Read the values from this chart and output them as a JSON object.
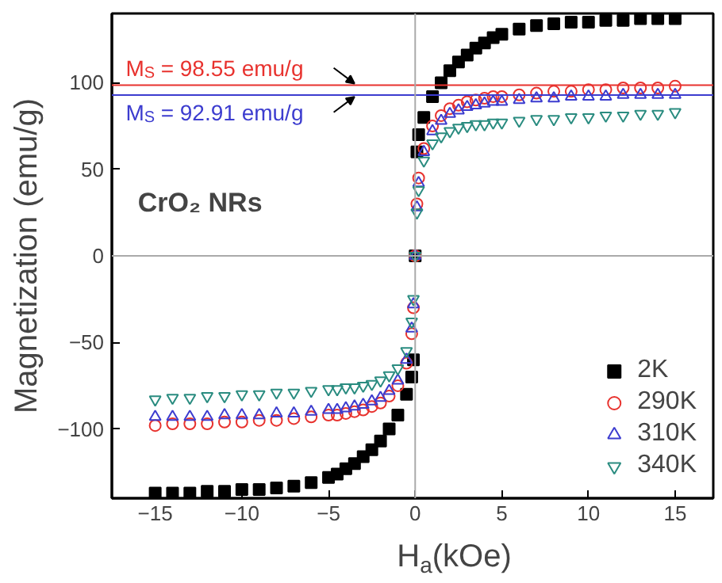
{
  "chart_data": {
    "type": "scatter",
    "xlabel": "H$_{a}$(kOe)",
    "ylabel": "Magnetization (emu/g)",
    "x": [
      -15,
      -14,
      -13,
      -12,
      -11,
      -10,
      -9,
      -8,
      -7,
      -6,
      -5,
      -4.5,
      -4,
      -3.5,
      -3,
      -2.5,
      -2,
      -1.5,
      -1,
      -0.5,
      -0.2,
      -0.1,
      0,
      0.1,
      0.2,
      0.5,
      1,
      1.5,
      2,
      2.5,
      3,
      3.5,
      4,
      4.5,
      5,
      6,
      7,
      8,
      9,
      10,
      11,
      12,
      13,
      14,
      15
    ],
    "series": [
      {
        "name": "2K",
        "color": "#000000",
        "marker": "square",
        "values": [
          -137,
          -137,
          -137,
          -136,
          -136,
          -135,
          -135,
          -134,
          -133,
          -131,
          -128,
          -126,
          -123,
          -120,
          -116,
          -112,
          -107,
          -100,
          -92,
          -80,
          -70,
          -60,
          0,
          60,
          70,
          80,
          92,
          100,
          107,
          112,
          116,
          120,
          123,
          126,
          128,
          131,
          133,
          134,
          135,
          135,
          136,
          136,
          137,
          137,
          137
        ]
      },
      {
        "name": "290K",
        "color": "#e8322e",
        "marker": "circle",
        "values": [
          -98,
          -97,
          -97,
          -97,
          -96,
          -96,
          -95,
          -95,
          -94,
          -93,
          -92,
          -92,
          -91,
          -90,
          -89,
          -87,
          -85,
          -81,
          -75,
          -62,
          -45,
          -30,
          0,
          30,
          45,
          62,
          75,
          81,
          85,
          87,
          89,
          90,
          91,
          92,
          92,
          93,
          94,
          95,
          95,
          96,
          96,
          97,
          97,
          97,
          98
        ]
      },
      {
        "name": "310K",
        "color": "#3c3ccf",
        "marker": "triangle",
        "values": [
          -93,
          -93,
          -93,
          -93,
          -92,
          -92,
          -92,
          -91,
          -91,
          -90,
          -89,
          -89,
          -88,
          -87,
          -86,
          -84,
          -82,
          -78,
          -72,
          -60,
          -42,
          -28,
          0,
          28,
          42,
          60,
          72,
          78,
          82,
          84,
          86,
          87,
          88,
          89,
          89,
          90,
          91,
          91,
          92,
          92,
          92,
          93,
          93,
          93,
          93
        ]
      },
      {
        "name": "340K",
        "color": "#2a8c80",
        "values": [
          -83,
          -82,
          -82,
          -81,
          -81,
          -80,
          -80,
          -79,
          -79,
          -78,
          -77,
          -77,
          -76,
          -76,
          -75,
          -74,
          -72,
          -69,
          -65,
          -55,
          -38,
          -25,
          0,
          25,
          38,
          55,
          65,
          69,
          72,
          74,
          75,
          76,
          76,
          77,
          77,
          78,
          79,
          79,
          80,
          80,
          81,
          81,
          82,
          82,
          83
        ]
      }
    ],
    "xlim": [
      -17.5,
      17.2
    ],
    "ylim": [
      -140,
      140
    ],
    "xticks": [
      -15,
      -10,
      -5,
      0,
      5,
      10,
      15
    ],
    "yticks": [
      -100,
      -50,
      0,
      50,
      100
    ],
    "ref_lines": [
      {
        "axis": "y",
        "value": 98.55,
        "label": "M$_{S}$ = 98.55 emu/g",
        "color": "#e8322e"
      },
      {
        "axis": "y",
        "value": 92.91,
        "label": "M$_{S}$ = 92.91 emu/g",
        "color": "#3c3ccf"
      },
      {
        "axis": "x",
        "value": 0,
        "color": "#aaaaaa"
      },
      {
        "axis": "y",
        "value": 0,
        "color": "#aaaaaa"
      }
    ],
    "annotations": [
      "CrO₂ NRs"
    ],
    "legend": "bottom right",
    "grid": false
  }
}
